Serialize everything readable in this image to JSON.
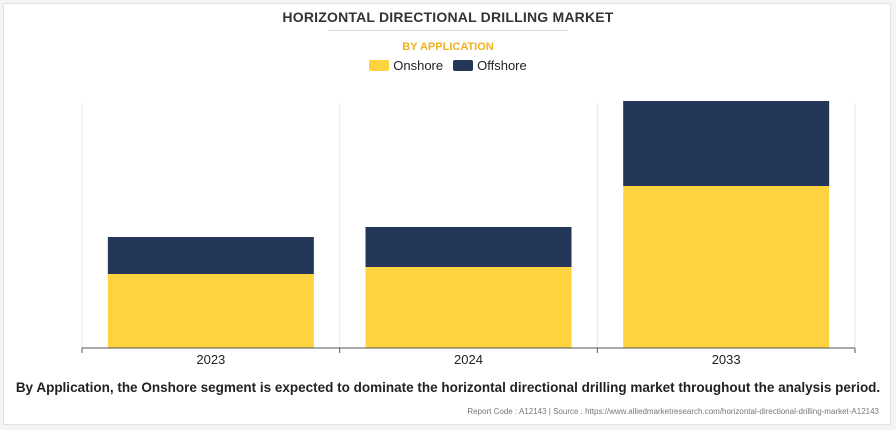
{
  "chart_data": {
    "type": "bar",
    "stacked": true,
    "title": "HORIZONTAL DIRECTIONAL DRILLING MARKET",
    "subtitle": "BY APPLICATION",
    "categories": [
      "2023",
      "2024",
      "2033"
    ],
    "series": [
      {
        "name": "Onshore",
        "color": "#fdd43f",
        "values": [
          7.4,
          8.1,
          16.2
        ]
      },
      {
        "name": "Offshore",
        "color": "#253759",
        "values": [
          3.7,
          4.0,
          8.5
        ]
      }
    ],
    "ylim": [
      0,
      25
    ],
    "grid": "vertical separators",
    "legend": "top-center"
  },
  "caption": "By Application, the Onshore segment is expected to dominate the horizontal directional drilling market throughout the analysis period.",
  "source": "Report Code : A12143  |  Source : https://www.alliedmarketresearch.com/horizontal-directional-drilling-market-A12143"
}
